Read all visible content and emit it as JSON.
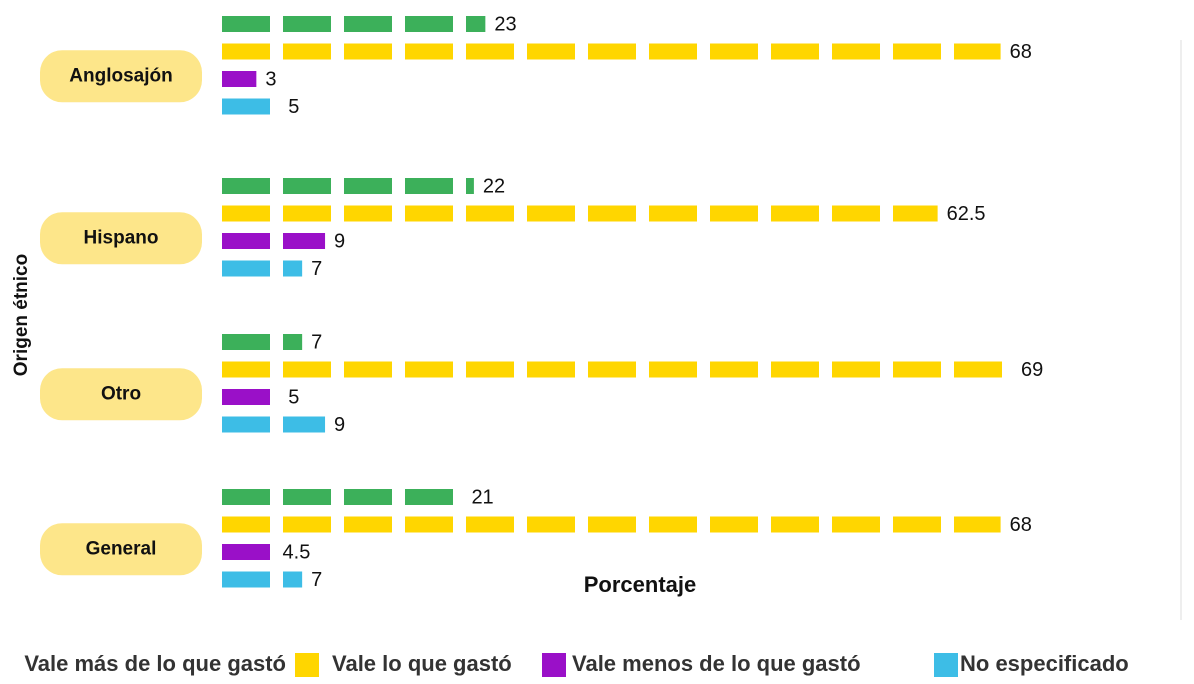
{
  "chart_data": {
    "type": "bar",
    "orientation": "horizontal",
    "y_label": "Origen étnico",
    "x_label": "Porcentaje",
    "categories": [
      "Anglosajón",
      "Hispano",
      "Otro",
      "General"
    ],
    "series": [
      {
        "name": "Vale más de lo que gastó",
        "color": "#3cb05a",
        "values": [
          23,
          22,
          7,
          21
        ]
      },
      {
        "name": "Vale lo que gastó",
        "color": "#ffd600",
        "values": [
          68,
          62.5,
          69,
          68
        ]
      },
      {
        "name": "Vale menos de lo que gastó",
        "color": "#9a10c8",
        "values": [
          3,
          9,
          5,
          4.5
        ]
      },
      {
        "name": "No especificado",
        "color": "#3dbde6",
        "values": [
          5,
          7,
          9,
          7
        ]
      }
    ]
  }
}
